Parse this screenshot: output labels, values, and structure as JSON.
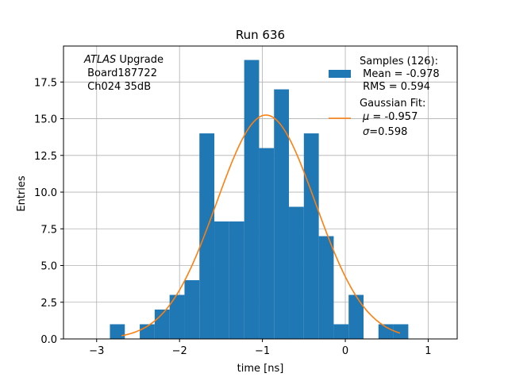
{
  "chart_data": {
    "type": "bar",
    "title": "Run 636",
    "xlabel": "time [ns]",
    "ylabel": "Entries",
    "xlim": [
      -3.4,
      1.35
    ],
    "ylim": [
      0,
      19.95
    ],
    "xticks": [
      -3,
      -2,
      -1,
      0,
      1
    ],
    "xtick_labels": [
      "−3",
      "−2",
      "−1",
      "0",
      "1"
    ],
    "yticks": [
      0,
      2.5,
      5,
      7.5,
      10,
      12.5,
      15,
      17.5
    ],
    "ytick_labels": [
      "0.0",
      "2.5",
      "5.0",
      "7.5",
      "10.0",
      "12.5",
      "15.0",
      "17.5"
    ],
    "grid": true,
    "bar_color": "#1f77b4",
    "fit_color": "#ff7f0e",
    "bins": [
      {
        "x0": -3.2,
        "x1": -3.02,
        "count": 0
      },
      {
        "x0": -3.02,
        "x1": -2.84,
        "count": 0
      },
      {
        "x0": -2.84,
        "x1": -2.66,
        "count": 1
      },
      {
        "x0": -2.66,
        "x1": -2.48,
        "count": 0
      },
      {
        "x0": -2.48,
        "x1": -2.3,
        "count": 1
      },
      {
        "x0": -2.3,
        "x1": -2.12,
        "count": 2
      },
      {
        "x0": -2.12,
        "x1": -1.94,
        "count": 3
      },
      {
        "x0": -1.94,
        "x1": -1.76,
        "count": 4
      },
      {
        "x0": -1.76,
        "x1": -1.58,
        "count": 14
      },
      {
        "x0": -1.58,
        "x1": -1.4,
        "count": 8
      },
      {
        "x0": -1.4,
        "x1": -1.22,
        "count": 8
      },
      {
        "x0": -1.22,
        "x1": -1.04,
        "count": 19
      },
      {
        "x0": -1.04,
        "x1": -0.86,
        "count": 13
      },
      {
        "x0": -0.86,
        "x1": -0.68,
        "count": 17
      },
      {
        "x0": -0.68,
        "x1": -0.5,
        "count": 9
      },
      {
        "x0": -0.5,
        "x1": -0.32,
        "count": 14
      },
      {
        "x0": -0.32,
        "x1": -0.14,
        "count": 7
      },
      {
        "x0": -0.14,
        "x1": 0.04,
        "count": 1
      },
      {
        "x0": 0.04,
        "x1": 0.22,
        "count": 3
      },
      {
        "x0": 0.22,
        "x1": 0.4,
        "count": 0
      },
      {
        "x0": 0.4,
        "x1": 0.58,
        "count": 1
      },
      {
        "x0": 0.58,
        "x1": 0.76,
        "count": 1
      }
    ],
    "fit": {
      "amplitude": 15.25,
      "mu": -0.957,
      "sigma": 0.598,
      "x_range": [
        -2.7,
        0.66
      ]
    },
    "annotation": {
      "line1_italic": "ATLAS",
      "line1_rest": " Upgrade",
      "line2": " Board187722",
      "line3": " Ch024 35dB"
    },
    "legend": {
      "position": "upper right",
      "hist_lines": [
        "Samples (126):",
        " Mean = -0.978",
        " RMS = 0.594"
      ],
      "fit_line1": "Gaussian Fit:",
      "fit_mu_symbol": "μ",
      "fit_mu_value": " = -0.957",
      "fit_sigma_symbol": "σ",
      "fit_sigma_value": "=0.598"
    }
  }
}
